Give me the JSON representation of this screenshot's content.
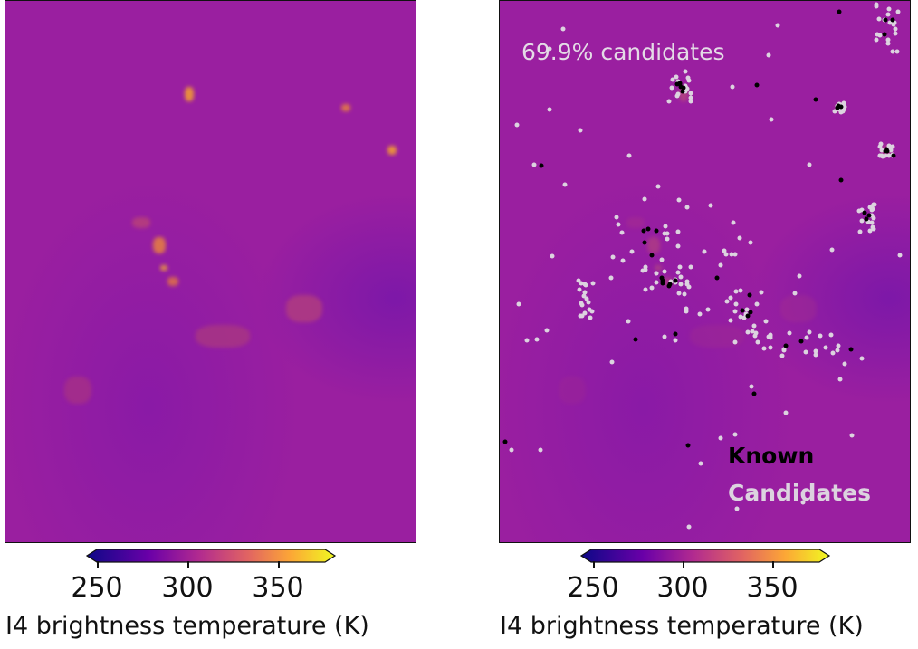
{
  "chart_data": [
    {
      "type": "heatmap",
      "title": "",
      "colormap": "plasma",
      "colorbar": {
        "label": "I4 brightness temperature (K)",
        "range": [
          250,
          380
        ],
        "ticks": [
          "250",
          "300",
          "350"
        ],
        "extend": "both"
      }
    },
    {
      "type": "heatmap",
      "title": "",
      "colormap": "plasma",
      "annotation": "69.9% candidates",
      "legend": {
        "placement": "bottom-right",
        "entries": [
          {
            "label": "Known",
            "color": "#000000"
          },
          {
            "label": "Candidates",
            "color": "#dcd3df"
          }
        ]
      },
      "colorbar": {
        "label": "I4 brightness temperature (K)",
        "range": [
          250,
          380
        ],
        "ticks": [
          "250",
          "300",
          "350"
        ],
        "extend": "both"
      }
    }
  ]
}
